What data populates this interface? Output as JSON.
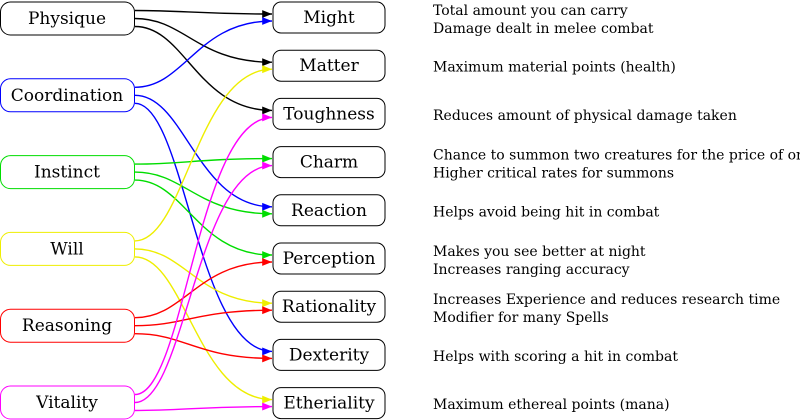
{
  "left_nodes": [
    {
      "label": "Physique",
      "color": "#000000"
    },
    {
      "label": "Coordination",
      "color": "#0000ff"
    },
    {
      "label": "Instinct",
      "color": "#00dd00"
    },
    {
      "label": "Will",
      "color": "#eeee00"
    },
    {
      "label": "Reasoning",
      "color": "#ff0000"
    },
    {
      "label": "Vitality",
      "color": "#ff00ff"
    }
  ],
  "right_nodes": [
    {
      "label": "Might",
      "description": [
        "Total amount you can carry",
        "Damage dealt in melee combat"
      ]
    },
    {
      "label": "Matter",
      "description": [
        "Maximum material points (health)"
      ]
    },
    {
      "label": "Toughness",
      "description": [
        "Reduces amount of physical damage taken"
      ]
    },
    {
      "label": "Charm",
      "description": [
        "Chance to summon two creatures for the price of one",
        "Higher critical rates for summons"
      ]
    },
    {
      "label": "Reaction",
      "description": [
        "Helps avoid being hit in combat"
      ]
    },
    {
      "label": "Perception",
      "description": [
        "Makes you see better at night",
        "Increases ranging accuracy"
      ]
    },
    {
      "label": "Rationality",
      "description": [
        "Increases Experience and reduces research time",
        "Modifier for many Spells"
      ]
    },
    {
      "label": "Dexterity",
      "description": [
        "Helps with scoring a hit in combat"
      ]
    },
    {
      "label": "Etheriality",
      "description": [
        "Maximum ethereal points (mana)"
      ]
    }
  ],
  "edges": [
    {
      "from": 0,
      "to": 0
    },
    {
      "from": 0,
      "to": 1
    },
    {
      "from": 0,
      "to": 2
    },
    {
      "from": 1,
      "to": 0
    },
    {
      "from": 1,
      "to": 4
    },
    {
      "from": 1,
      "to": 7
    },
    {
      "from": 2,
      "to": 3
    },
    {
      "from": 2,
      "to": 4
    },
    {
      "from": 2,
      "to": 5
    },
    {
      "from": 3,
      "to": 1
    },
    {
      "from": 3,
      "to": 6
    },
    {
      "from": 3,
      "to": 8
    },
    {
      "from": 4,
      "to": 5
    },
    {
      "from": 4,
      "to": 6
    },
    {
      "from": 4,
      "to": 7
    },
    {
      "from": 5,
      "to": 2
    },
    {
      "from": 5,
      "to": 3
    },
    {
      "from": 5,
      "to": 8
    }
  ]
}
